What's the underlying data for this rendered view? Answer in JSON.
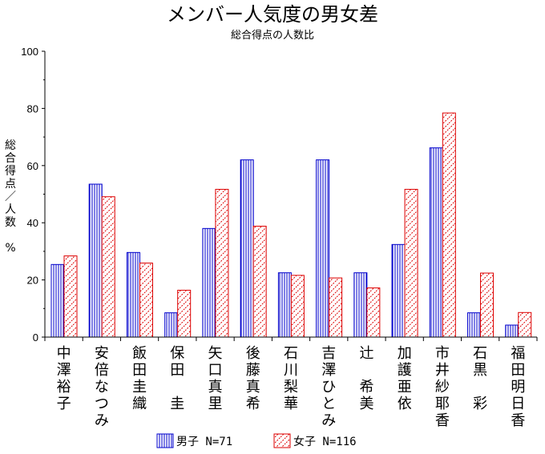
{
  "chart_data": {
    "type": "bar",
    "title": "メンバー人気度の男女差",
    "subtitle": "総合得点の人数比",
    "ylabel_lines": [
      "総",
      "合",
      "得",
      "点",
      "／",
      "人",
      "数",
      "",
      "%"
    ],
    "ylim": [
      0,
      100
    ],
    "yticks": [
      0,
      20,
      40,
      60,
      80,
      100
    ],
    "grid": false,
    "legend_position": "bottom",
    "categories": [
      "中澤裕子",
      "安倍なつみ",
      "飯田圭織",
      "保田　圭",
      "矢口真里",
      "後藤真希",
      "石川梨華",
      "吉澤ひとみ",
      "辻　希美",
      "加護亜依",
      "市井紗耶香",
      "石黒　彩",
      "福田明日香"
    ],
    "series": [
      {
        "name": "男子 N=71",
        "color": "#0000cc",
        "pattern": "vertical-lines",
        "values": [
          25.4,
          53.5,
          29.6,
          8.5,
          38.0,
          62.0,
          22.5,
          62.0,
          22.5,
          32.4,
          66.2,
          8.5,
          4.2
        ]
      },
      {
        "name": "女子 N=116",
        "color": "#dd0000",
        "pattern": "diagonal-hatch",
        "values": [
          28.4,
          49.1,
          25.9,
          16.4,
          51.7,
          38.8,
          21.6,
          20.7,
          17.2,
          51.7,
          78.4,
          22.4,
          8.6
        ]
      }
    ]
  }
}
